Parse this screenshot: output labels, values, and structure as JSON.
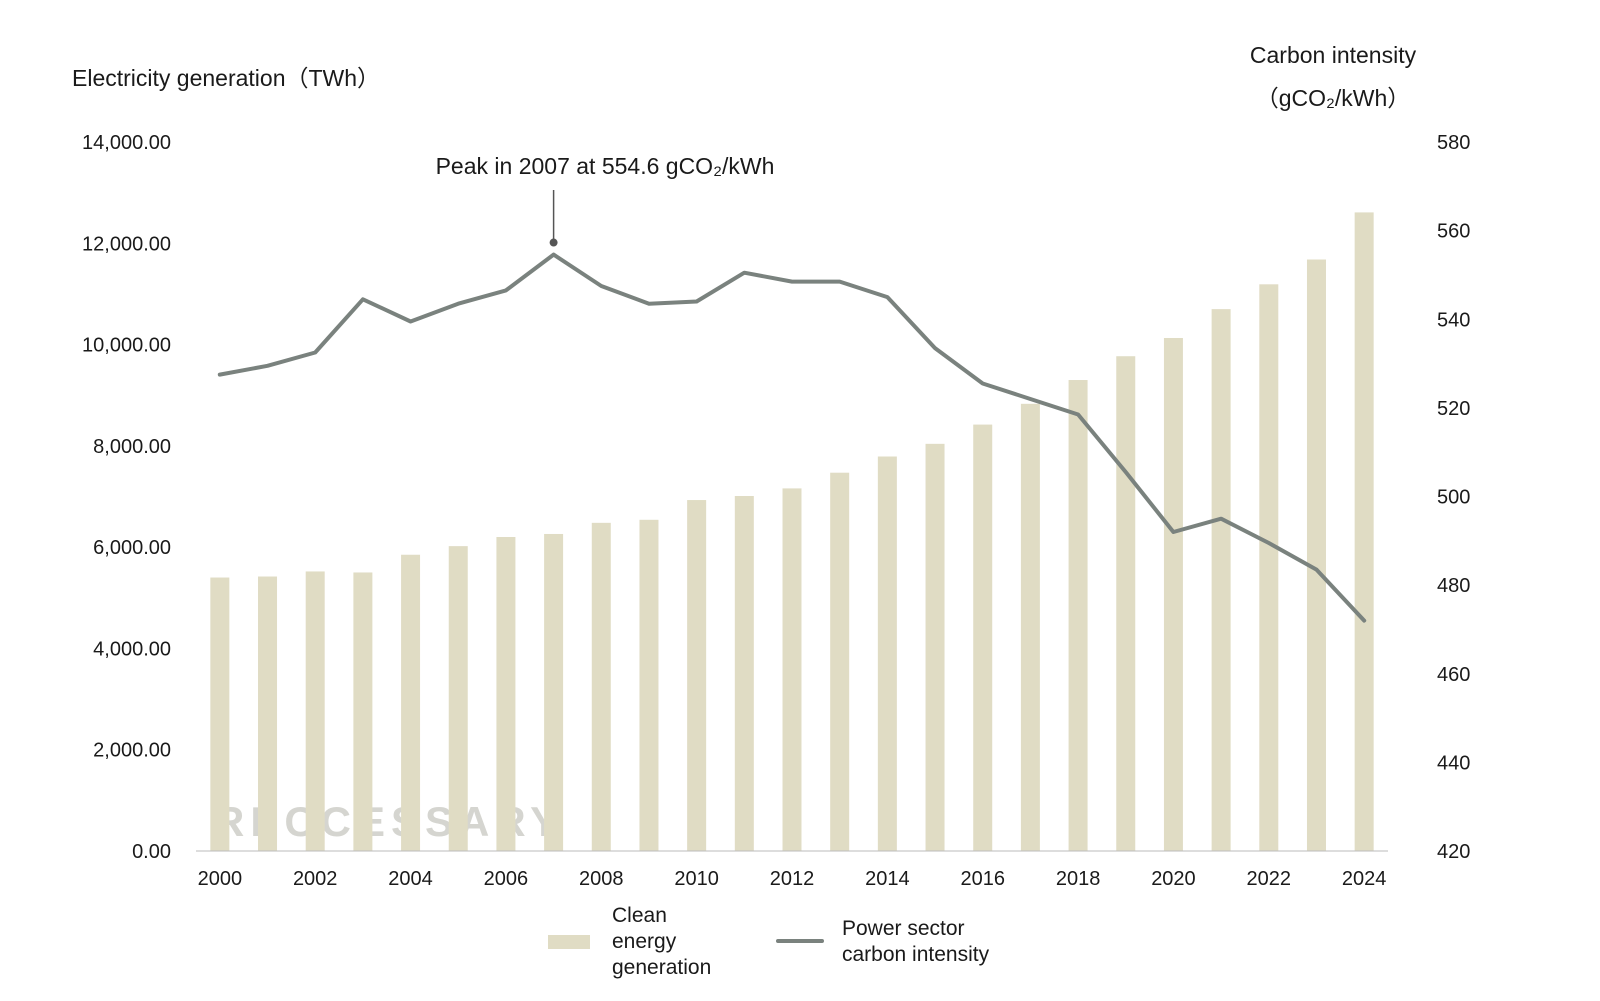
{
  "chart_data": {
    "type": "bar+line",
    "x": [
      2000,
      2001,
      2002,
      2003,
      2004,
      2005,
      2006,
      2007,
      2008,
      2009,
      2010,
      2011,
      2012,
      2013,
      2014,
      2015,
      2016,
      2017,
      2018,
      2019,
      2020,
      2021,
      2022,
      2023,
      2024
    ],
    "x_tick_labels": [
      "2000",
      "2002",
      "2004",
      "2006",
      "2008",
      "2010",
      "2012",
      "2014",
      "2016",
      "2018",
      "2020",
      "2022",
      "2024"
    ],
    "series": [
      {
        "name": "Clean energy generation",
        "kind": "bar",
        "axis": "left",
        "color": "#e0dcc4",
        "values": [
          5400,
          5420,
          5520,
          5500,
          5850,
          6020,
          6200,
          6260,
          6480,
          6540,
          6930,
          7010,
          7160,
          7470,
          7790,
          8040,
          8420,
          8830,
          9300,
          9770,
          10130,
          10700,
          11190,
          11680,
          12610
        ]
      },
      {
        "name": "Power sector carbon intensity",
        "kind": "line",
        "axis": "right",
        "color": "#7a827e",
        "values": [
          527.5,
          529.5,
          532.5,
          544.5,
          539.5,
          543.5,
          546.5,
          554.6,
          547.5,
          543.5,
          544,
          550.5,
          548.5,
          548.5,
          545,
          533.5,
          525.5,
          522,
          518.5,
          505.5,
          492,
          495,
          489.5,
          483.5,
          472
        ]
      }
    ],
    "y_left": {
      "label": "Electricity generation（TWh）",
      "ylim": [
        0,
        14000
      ],
      "ticks": [
        "0.00",
        "2,000.00",
        "4,000.00",
        "6,000.00",
        "8,000.00",
        "10,000.00",
        "12,000.00",
        "14,000.00"
      ]
    },
    "y_right": {
      "label_line1": "Carbon intensity",
      "label_line2": "（gCO₂/kWh）",
      "ylim": [
        420,
        580
      ],
      "ticks": [
        "420",
        "440",
        "460",
        "480",
        "500",
        "520",
        "540",
        "560",
        "580"
      ]
    },
    "annotation": {
      "text": "Peak in 2007 at 554.6 gCO₂/kWh",
      "x": 2007,
      "y": 554.6
    },
    "legend": {
      "position": "bottom",
      "items": [
        {
          "lines": [
            "Clean",
            "energy",
            "generation"
          ],
          "color": "#e0dcc4",
          "kind": "bar"
        },
        {
          "lines": [
            "Power sector",
            "carbon intensity"
          ],
          "color": "#7a827e",
          "kind": "line"
        }
      ]
    },
    "watermark": "RECCESSARY",
    "grid": false
  }
}
